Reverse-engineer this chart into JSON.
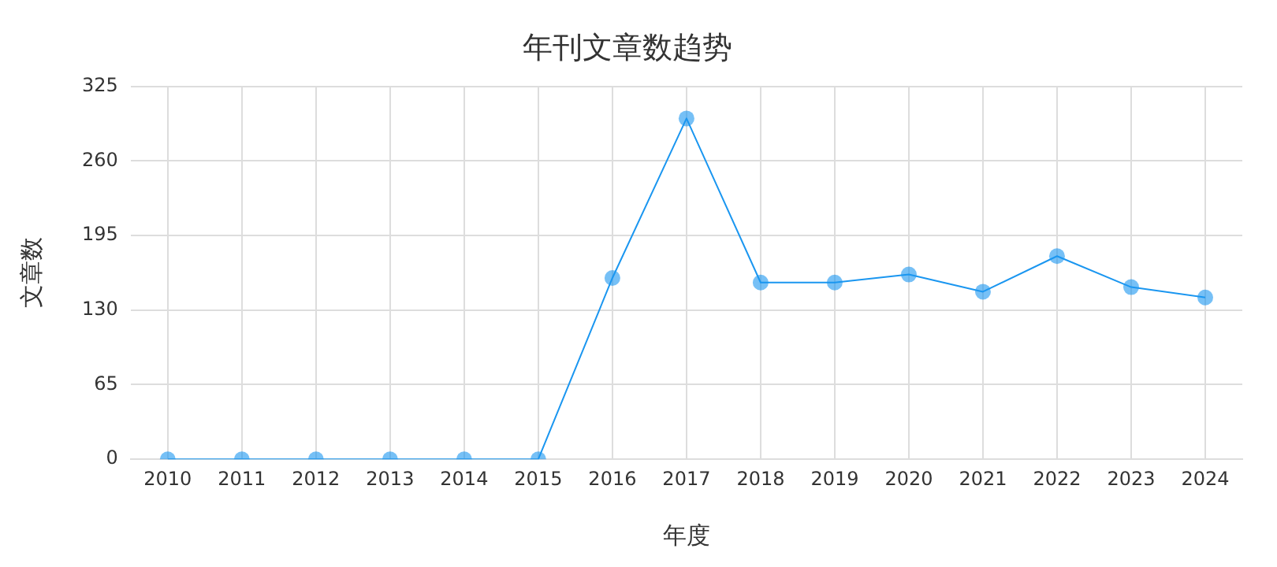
{
  "chart_data": {
    "type": "line",
    "title": "年刊文章数趋势",
    "xlabel": "年度",
    "ylabel": "文章数",
    "categories": [
      "2010",
      "2011",
      "2012",
      "2013",
      "2014",
      "2015",
      "2016",
      "2017",
      "2018",
      "2019",
      "2020",
      "2021",
      "2022",
      "2023",
      "2024"
    ],
    "series": [
      {
        "color": "#1a96f0",
        "values": [
          0,
          0,
          0,
          0,
          0,
          0,
          158,
          297,
          154,
          154,
          161,
          146,
          177,
          150,
          141
        ]
      }
    ],
    "ylim": [
      0,
      325
    ],
    "yticks": [
      0,
      65,
      130,
      195,
      260,
      325
    ],
    "grid": true,
    "legend": false,
    "marker": "circle",
    "line_style": "solid"
  }
}
